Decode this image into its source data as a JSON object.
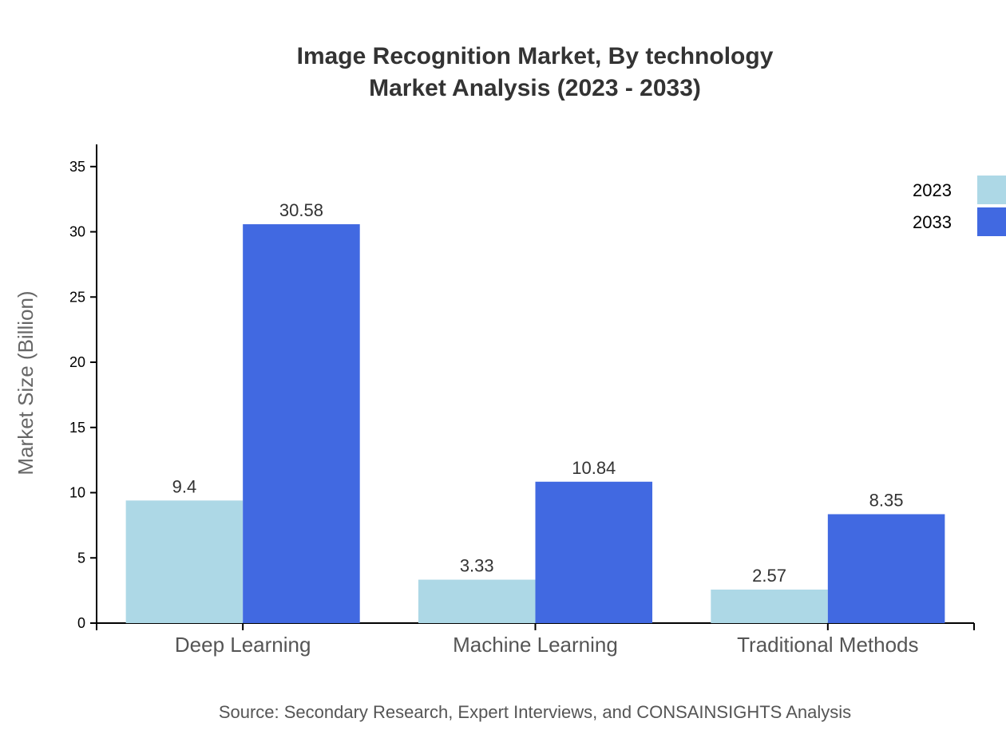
{
  "chart_data": {
    "type": "bar",
    "title": "Image Recognition Market, By technology",
    "subtitle": "Market Analysis (2023 - 2033)",
    "xlabel": "",
    "ylabel": "Market Size (Billion)",
    "categories": [
      "Deep Learning",
      "Machine Learning",
      "Traditional Methods"
    ],
    "series": [
      {
        "name": "2023",
        "color": "#ADD8E6",
        "values": [
          9.4,
          3.33,
          2.57
        ],
        "labels": [
          "9.4",
          "3.33",
          "2.57"
        ]
      },
      {
        "name": "2033",
        "color": "#4169E1",
        "values": [
          30.58,
          10.84,
          8.35
        ],
        "labels": [
          "30.58",
          "10.84",
          "8.35"
        ]
      }
    ],
    "ylim": [
      0,
      36.7
    ],
    "yticks": [
      0,
      5,
      10,
      15,
      20,
      25,
      30,
      35
    ],
    "grid": false,
    "legend_position": "top-right",
    "source": "Source: Secondary Research, Expert Interviews, and CONSAINSIGHTS Analysis"
  }
}
